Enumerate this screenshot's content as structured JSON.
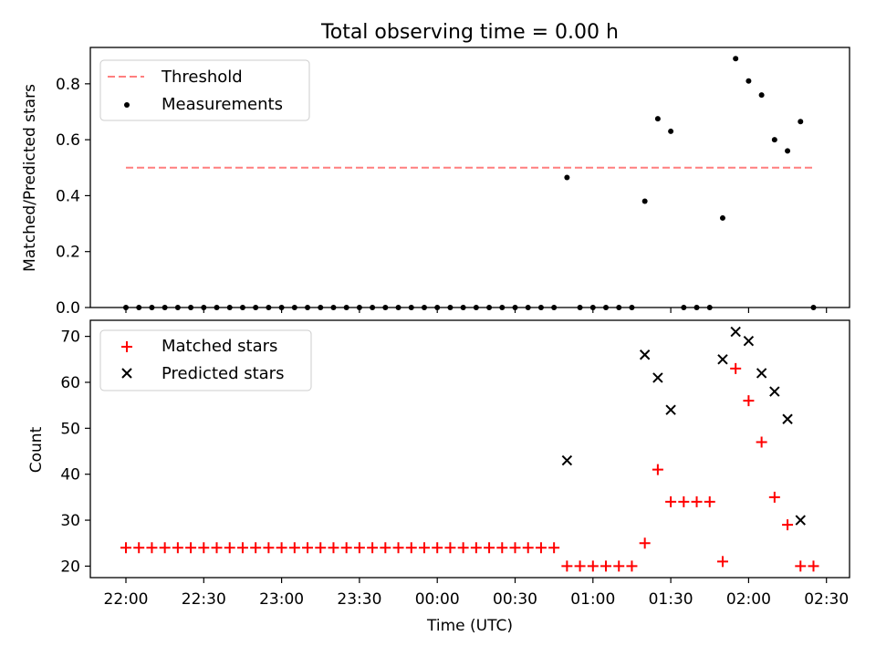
{
  "title": "Total observing time = 0.00 h",
  "chart_data": [
    {
      "type": "scatter",
      "panel": "top",
      "ylabel": "Matched/Predicted stars",
      "xlabel": "",
      "ylim": [
        0,
        0.93
      ],
      "yticks": [
        "0.0",
        "0.2",
        "0.4",
        "0.6",
        "0.8"
      ],
      "legend_placement": "upper-left",
      "threshold": {
        "name": "Threshold",
        "value": 0.5,
        "x_range": [
          "22:00",
          "02:25"
        ],
        "color": "#ff7f7f",
        "style": "dashed"
      },
      "series": [
        {
          "name": "Measurements",
          "marker": "dot",
          "color": "#000000",
          "points": [
            [
              "22:00",
              0
            ],
            [
              "22:05",
              0
            ],
            [
              "22:10",
              0
            ],
            [
              "22:15",
              0
            ],
            [
              "22:20",
              0
            ],
            [
              "22:25",
              0
            ],
            [
              "22:30",
              0
            ],
            [
              "22:35",
              0
            ],
            [
              "22:40",
              0
            ],
            [
              "22:45",
              0
            ],
            [
              "22:50",
              0
            ],
            [
              "22:55",
              0
            ],
            [
              "23:00",
              0
            ],
            [
              "23:05",
              0
            ],
            [
              "23:10",
              0
            ],
            [
              "23:15",
              0
            ],
            [
              "23:20",
              0
            ],
            [
              "23:25",
              0
            ],
            [
              "23:30",
              0
            ],
            [
              "23:35",
              0
            ],
            [
              "23:40",
              0
            ],
            [
              "23:45",
              0
            ],
            [
              "23:50",
              0
            ],
            [
              "23:55",
              0
            ],
            [
              "00:00",
              0
            ],
            [
              "00:05",
              0
            ],
            [
              "00:10",
              0
            ],
            [
              "00:15",
              0
            ],
            [
              "00:20",
              0
            ],
            [
              "00:25",
              0
            ],
            [
              "00:30",
              0
            ],
            [
              "00:35",
              0
            ],
            [
              "00:40",
              0
            ],
            [
              "00:45",
              0
            ],
            [
              "00:50",
              0.465
            ],
            [
              "00:55",
              0
            ],
            [
              "01:00",
              0
            ],
            [
              "01:05",
              0
            ],
            [
              "01:10",
              0
            ],
            [
              "01:15",
              0
            ],
            [
              "01:20",
              0.38
            ],
            [
              "01:25",
              0.675
            ],
            [
              "01:30",
              0.63
            ],
            [
              "01:35",
              0
            ],
            [
              "01:40",
              0
            ],
            [
              "01:45",
              0
            ],
            [
              "01:50",
              0.32
            ],
            [
              "01:55",
              0.89
            ],
            [
              "02:00",
              0.81
            ],
            [
              "02:05",
              0.76
            ],
            [
              "02:10",
              0.6
            ],
            [
              "02:15",
              0.56
            ],
            [
              "02:20",
              0.665
            ],
            [
              "02:25",
              0
            ]
          ]
        }
      ]
    },
    {
      "type": "scatter",
      "panel": "bottom",
      "ylabel": "Count",
      "xlabel": "Time (UTC)",
      "ylim": [
        17.5,
        73.5
      ],
      "yticks": [
        "20",
        "30",
        "40",
        "50",
        "60",
        "70"
      ],
      "xticks": [
        "22:00",
        "22:30",
        "23:00",
        "23:30",
        "00:00",
        "00:30",
        "01:00",
        "01:30",
        "02:00",
        "02:30"
      ],
      "legend_placement": "upper-left",
      "series": [
        {
          "name": "Matched stars",
          "marker": "plus",
          "color": "#ff0000",
          "points": [
            [
              "22:00",
              24
            ],
            [
              "22:05",
              24
            ],
            [
              "22:10",
              24
            ],
            [
              "22:15",
              24
            ],
            [
              "22:20",
              24
            ],
            [
              "22:25",
              24
            ],
            [
              "22:30",
              24
            ],
            [
              "22:35",
              24
            ],
            [
              "22:40",
              24
            ],
            [
              "22:45",
              24
            ],
            [
              "22:50",
              24
            ],
            [
              "22:55",
              24
            ],
            [
              "23:00",
              24
            ],
            [
              "23:05",
              24
            ],
            [
              "23:10",
              24
            ],
            [
              "23:15",
              24
            ],
            [
              "23:20",
              24
            ],
            [
              "23:25",
              24
            ],
            [
              "23:30",
              24
            ],
            [
              "23:35",
              24
            ],
            [
              "23:40",
              24
            ],
            [
              "23:45",
              24
            ],
            [
              "23:50",
              24
            ],
            [
              "23:55",
              24
            ],
            [
              "00:00",
              24
            ],
            [
              "00:05",
              24
            ],
            [
              "00:10",
              24
            ],
            [
              "00:15",
              24
            ],
            [
              "00:20",
              24
            ],
            [
              "00:25",
              24
            ],
            [
              "00:30",
              24
            ],
            [
              "00:35",
              24
            ],
            [
              "00:40",
              24
            ],
            [
              "00:45",
              24
            ],
            [
              "00:50",
              20
            ],
            [
              "00:55",
              20
            ],
            [
              "01:00",
              20
            ],
            [
              "01:05",
              20
            ],
            [
              "01:10",
              20
            ],
            [
              "01:15",
              20
            ],
            [
              "01:20",
              25
            ],
            [
              "01:25",
              41
            ],
            [
              "01:30",
              34
            ],
            [
              "01:35",
              34
            ],
            [
              "01:40",
              34
            ],
            [
              "01:45",
              34
            ],
            [
              "01:50",
              21
            ],
            [
              "01:55",
              63
            ],
            [
              "02:00",
              56
            ],
            [
              "02:05",
              47
            ],
            [
              "02:10",
              35
            ],
            [
              "02:15",
              29
            ],
            [
              "02:20",
              20
            ],
            [
              "02:25",
              20
            ]
          ]
        },
        {
          "name": "Predicted stars",
          "marker": "x",
          "color": "#000000",
          "points": [
            [
              "00:50",
              43
            ],
            [
              "01:20",
              66
            ],
            [
              "01:25",
              61
            ],
            [
              "01:30",
              54
            ],
            [
              "01:50",
              65
            ],
            [
              "01:55",
              71
            ],
            [
              "02:00",
              69
            ],
            [
              "02:05",
              62
            ],
            [
              "02:10",
              58
            ],
            [
              "02:15",
              52
            ],
            [
              "02:20",
              30
            ]
          ]
        }
      ]
    }
  ]
}
